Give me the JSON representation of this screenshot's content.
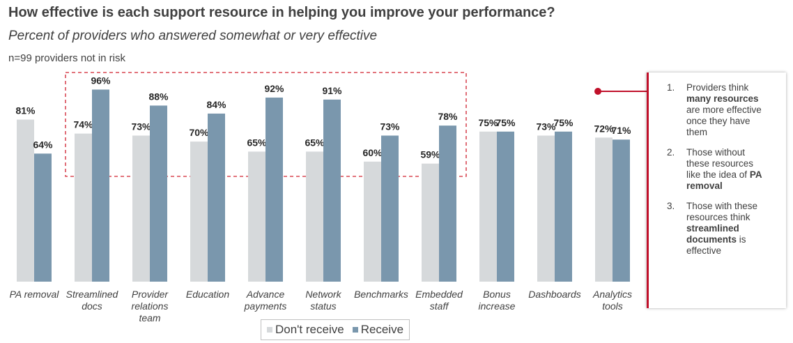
{
  "header": {
    "title": "How effective is each support resource in helping you improve your performance?",
    "subtitle": "Percent of providers who answered somewhat or very effective",
    "note": "n=99 providers not in risk"
  },
  "colors": {
    "dont_receive": "#d6d9db",
    "receive": "#7a97ad",
    "highlight": "#d0202f"
  },
  "legend": {
    "dont_receive": "Don't receive",
    "receive": "Receive"
  },
  "callout": {
    "items": [
      {
        "num": "1.",
        "parts": [
          "Providers think ",
          "many resources",
          " are more effective once they have them"
        ]
      },
      {
        "num": "2.",
        "parts": [
          "Those without these resources like the idea of ",
          "PA removal",
          ""
        ]
      },
      {
        "num": "3.",
        "parts": [
          "Those with these resources think ",
          "streamlined documents",
          " is effective"
        ]
      }
    ]
  },
  "chart_data": {
    "type": "bar",
    "categories": [
      [
        "PA removal"
      ],
      [
        "Streamlined",
        "docs"
      ],
      [
        "Provider",
        "relations",
        "team"
      ],
      [
        "Education"
      ],
      [
        "Advance",
        "payments"
      ],
      [
        "Network",
        "status"
      ],
      [
        "Benchmarks"
      ],
      [
        "Embedded",
        "staff"
      ],
      [
        "Bonus",
        "increase"
      ],
      [
        "Dashboards"
      ],
      [
        "Analytics",
        "tools"
      ]
    ],
    "series": [
      {
        "name": "Don't receive",
        "values": [
          81,
          74,
          73,
          70,
          65,
          65,
          60,
          59,
          75,
          73,
          72
        ]
      },
      {
        "name": "Receive",
        "values": [
          64,
          96,
          88,
          84,
          92,
          91,
          73,
          78,
          75,
          75,
          71
        ]
      }
    ],
    "value_suffix": "%",
    "ylim": [
      0,
      100
    ],
    "highlighted_categories": [
      1,
      2,
      3,
      4,
      5,
      6,
      7
    ]
  }
}
